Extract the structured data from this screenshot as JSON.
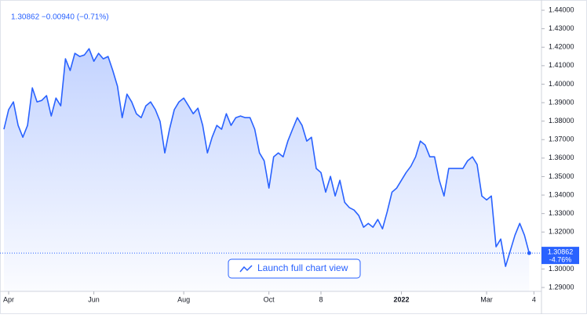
{
  "chart_data": {
    "type": "area",
    "header": "1.30862 −0.00940 (−0.71%)",
    "last_price_label": "1.30862",
    "last_change_label": "-4.76%",
    "button": "Launch full chart view",
    "color": "#2962ff",
    "values": [
      1.3756,
      1.3862,
      1.3904,
      1.3777,
      1.3713,
      1.3777,
      1.398,
      1.3904,
      1.3912,
      1.3938,
      1.3828,
      1.3925,
      1.3883,
      1.4137,
      1.4074,
      1.4167,
      1.415,
      1.4158,
      1.4192,
      1.4124,
      1.4167,
      1.4137,
      1.415,
      1.4074,
      1.3989,
      1.3819,
      1.3946,
      1.3904,
      1.384,
      1.3819,
      1.3883,
      1.3904,
      1.3862,
      1.3798,
      1.3628,
      1.3756,
      1.3862,
      1.3904,
      1.3925,
      1.3883,
      1.384,
      1.387,
      1.3777,
      1.3628,
      1.3713,
      1.3777,
      1.3756,
      1.384,
      1.3777,
      1.3819,
      1.3828,
      1.3819,
      1.3819,
      1.3756,
      1.3628,
      1.3586,
      1.3438,
      1.3607,
      1.3628,
      1.3607,
      1.3692,
      1.3756,
      1.3819,
      1.3777,
      1.3692,
      1.3713,
      1.3544,
      1.3522,
      1.3416,
      1.3501,
      1.3395,
      1.348,
      1.3361,
      1.3332,
      1.3319,
      1.3289,
      1.3226,
      1.3247,
      1.3226,
      1.3268,
      1.3217,
      1.331,
      1.3416,
      1.3438,
      1.348,
      1.3522,
      1.3556,
      1.3607,
      1.3692,
      1.3671,
      1.3607,
      1.3607,
      1.348,
      1.3395,
      1.3544,
      1.3544,
      1.3544,
      1.3544,
      1.3586,
      1.3607,
      1.3565,
      1.3395,
      1.3374,
      1.3395,
      1.312,
      1.3162,
      1.3014,
      1.3098,
      1.3183,
      1.3247,
      1.3183,
      1.30862
    ],
    "xlim": [
      0,
      113.6
    ],
    "xticks": [
      {
        "value": 1,
        "label": "Apr"
      },
      {
        "value": 19,
        "label": "Jun"
      },
      {
        "value": 38,
        "label": "Aug"
      },
      {
        "value": 56,
        "label": "Oct"
      },
      {
        "value": 67,
        "label": "8"
      },
      {
        "value": 84,
        "label": "2022"
      },
      {
        "value": 102,
        "label": "Mar"
      },
      {
        "value": 112,
        "label": "4"
      }
    ],
    "ylim": [
      1.2879,
      1.4413
    ],
    "yticks": [
      {
        "value": 1.29,
        "label": "1.29000"
      },
      {
        "value": 1.3,
        "label": "1.30000"
      },
      {
        "value": 1.31,
        "label": "1.31000"
      },
      {
        "value": 1.32,
        "label": "1.32000"
      },
      {
        "value": 1.33,
        "label": "1.33000"
      },
      {
        "value": 1.34,
        "label": "1.34000"
      },
      {
        "value": 1.35,
        "label": "1.35000"
      },
      {
        "value": 1.36,
        "label": "1.36000"
      },
      {
        "value": 1.37,
        "label": "1.37000"
      },
      {
        "value": 1.38,
        "label": "1.38000"
      },
      {
        "value": 1.39,
        "label": "1.39000"
      },
      {
        "value": 1.4,
        "label": "1.40000"
      },
      {
        "value": 1.41,
        "label": "1.41000"
      },
      {
        "value": 1.42,
        "label": "1.42000"
      },
      {
        "value": 1.43,
        "label": "1.43000"
      },
      {
        "value": 1.44,
        "label": "1.44000"
      }
    ]
  }
}
